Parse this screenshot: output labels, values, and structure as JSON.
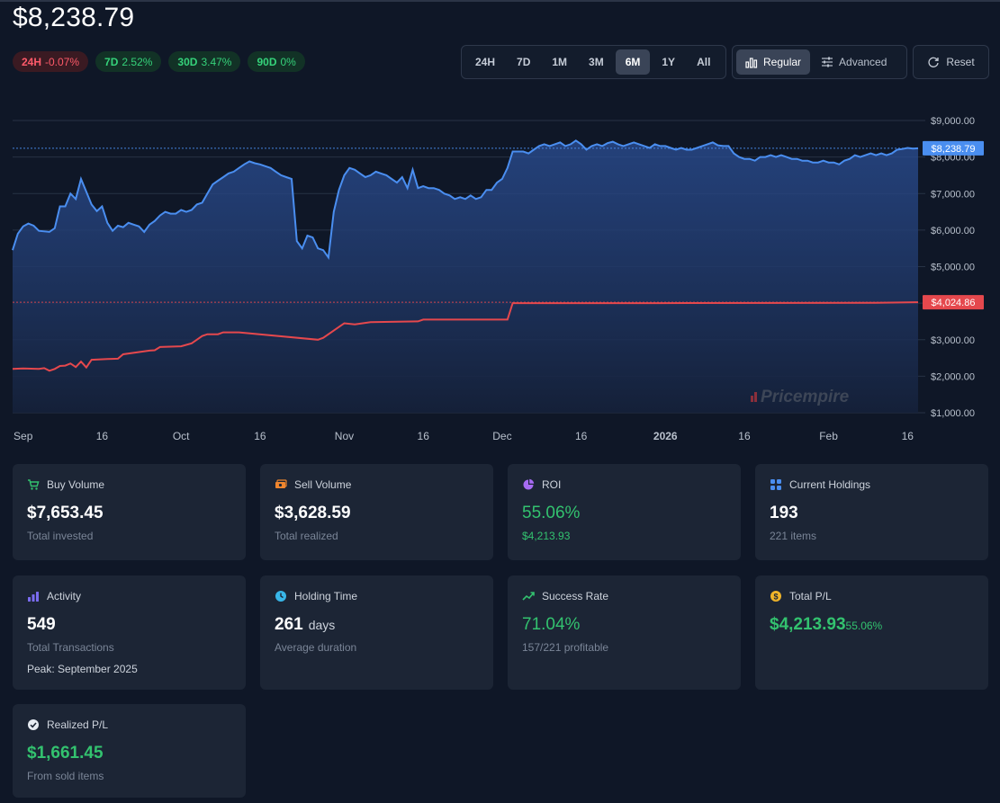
{
  "portfolio": {
    "current_value": "$8,238.79"
  },
  "changes": [
    {
      "period": "24H",
      "value": "-0.07%",
      "trend": "negative"
    },
    {
      "period": "7D",
      "value": "2.52%",
      "trend": "positive"
    },
    {
      "period": "30D",
      "value": "3.47%",
      "trend": "positive"
    },
    {
      "period": "90D",
      "value": "0%",
      "trend": "positive"
    }
  ],
  "ranges": {
    "options": [
      "24H",
      "7D",
      "1M",
      "3M",
      "6M",
      "1Y",
      "All"
    ],
    "selected": "6M"
  },
  "modes": {
    "regular_label": "Regular",
    "advanced_label": "Advanced",
    "selected": "Regular"
  },
  "reset_label": "Reset",
  "chart_data": {
    "type": "line",
    "y_ticks": [
      "$9,000.00",
      "$8,000.00",
      "$7,000.00",
      "$6,000.00",
      "$5,000.00",
      "$4,000.00",
      "$3,000.00",
      "$2,000.00",
      "$1,000.00"
    ],
    "x_ticks": [
      "Sep",
      "16",
      "Oct",
      "16",
      "Nov",
      "16",
      "Dec",
      "16",
      "2026",
      "16",
      "Feb",
      "16"
    ],
    "ylim": [
      1000,
      9000
    ],
    "grid": true,
    "watermark": "Pricempire",
    "series": [
      {
        "color": "#4a8ef0",
        "last_label": "$8,238.79",
        "points": [
          [
            "2025-08-30",
            5450
          ],
          [
            "2025-08-31",
            5900
          ],
          [
            "2025-09-01",
            6100
          ],
          [
            "2025-09-02",
            6180
          ],
          [
            "2025-09-03",
            6120
          ],
          [
            "2025-09-04",
            5980
          ],
          [
            "2025-09-06",
            5950
          ],
          [
            "2025-09-07",
            6050
          ],
          [
            "2025-09-08",
            6650
          ],
          [
            "2025-09-09",
            6650
          ],
          [
            "2025-09-10",
            7000
          ],
          [
            "2025-09-11",
            6850
          ],
          [
            "2025-09-12",
            7400
          ],
          [
            "2025-09-13",
            7050
          ],
          [
            "2025-09-14",
            6700
          ],
          [
            "2025-09-15",
            6520
          ],
          [
            "2025-09-16",
            6650
          ],
          [
            "2025-09-17",
            6200
          ],
          [
            "2025-09-18",
            5980
          ],
          [
            "2025-09-19",
            6120
          ],
          [
            "2025-09-20",
            6080
          ],
          [
            "2025-09-21",
            6200
          ],
          [
            "2025-09-22",
            6150
          ],
          [
            "2025-09-23",
            6100
          ],
          [
            "2025-09-24",
            5950
          ],
          [
            "2025-09-25",
            6150
          ],
          [
            "2025-09-26",
            6250
          ],
          [
            "2025-09-27",
            6400
          ],
          [
            "2025-09-28",
            6500
          ],
          [
            "2025-09-29",
            6450
          ],
          [
            "2025-09-30",
            6450
          ],
          [
            "2025-10-01",
            6550
          ],
          [
            "2025-10-02",
            6500
          ],
          [
            "2025-10-03",
            6550
          ],
          [
            "2025-10-04",
            6700
          ],
          [
            "2025-10-05",
            6750
          ],
          [
            "2025-10-06",
            7000
          ],
          [
            "2025-10-07",
            7250
          ],
          [
            "2025-10-08",
            7350
          ],
          [
            "2025-10-09",
            7450
          ],
          [
            "2025-10-10",
            7550
          ],
          [
            "2025-10-11",
            7600
          ],
          [
            "2025-10-12",
            7700
          ],
          [
            "2025-10-13",
            7800
          ],
          [
            "2025-10-14",
            7880
          ],
          [
            "2025-10-15",
            7830
          ],
          [
            "2025-10-16",
            7800
          ],
          [
            "2025-10-17",
            7750
          ],
          [
            "2025-10-18",
            7700
          ],
          [
            "2025-10-19",
            7600
          ],
          [
            "2025-10-20",
            7500
          ],
          [
            "2025-10-21",
            7450
          ],
          [
            "2025-10-22",
            7400
          ],
          [
            "2025-10-23",
            5700
          ],
          [
            "2025-10-24",
            5500
          ],
          [
            "2025-10-25",
            5850
          ],
          [
            "2025-10-26",
            5800
          ],
          [
            "2025-10-27",
            5500
          ],
          [
            "2025-10-28",
            5450
          ],
          [
            "2025-10-29",
            5250
          ],
          [
            "2025-10-30",
            6500
          ],
          [
            "2025-10-31",
            7100
          ],
          [
            "2025-11-01",
            7500
          ],
          [
            "2025-11-02",
            7700
          ],
          [
            "2025-11-03",
            7650
          ],
          [
            "2025-11-04",
            7550
          ],
          [
            "2025-11-05",
            7450
          ],
          [
            "2025-11-06",
            7500
          ],
          [
            "2025-11-07",
            7600
          ],
          [
            "2025-11-08",
            7550
          ],
          [
            "2025-11-09",
            7500
          ],
          [
            "2025-11-10",
            7400
          ],
          [
            "2025-11-11",
            7300
          ],
          [
            "2025-11-12",
            7450
          ],
          [
            "2025-11-13",
            7150
          ],
          [
            "2025-11-14",
            7650
          ],
          [
            "2025-11-15",
            7150
          ],
          [
            "2025-11-16",
            7200
          ],
          [
            "2025-11-17",
            7150
          ],
          [
            "2025-11-18",
            7150
          ],
          [
            "2025-11-19",
            7100
          ],
          [
            "2025-11-20",
            7000
          ],
          [
            "2025-11-21",
            6950
          ],
          [
            "2025-11-22",
            6850
          ],
          [
            "2025-11-23",
            6900
          ],
          [
            "2025-11-24",
            6850
          ],
          [
            "2025-11-25",
            6950
          ],
          [
            "2025-11-26",
            6850
          ],
          [
            "2025-11-27",
            6900
          ],
          [
            "2025-11-28",
            7100
          ],
          [
            "2025-11-29",
            7100
          ],
          [
            "2025-11-30",
            7300
          ],
          [
            "2025-12-01",
            7400
          ],
          [
            "2025-12-02",
            7700
          ],
          [
            "2025-12-03",
            8150
          ],
          [
            "2025-12-04",
            8150
          ],
          [
            "2025-12-05",
            8150
          ],
          [
            "2025-12-06",
            8100
          ],
          [
            "2025-12-07",
            8200
          ],
          [
            "2025-12-08",
            8300
          ],
          [
            "2025-12-09",
            8350
          ],
          [
            "2025-12-10",
            8300
          ],
          [
            "2025-12-11",
            8350
          ],
          [
            "2025-12-12",
            8400
          ],
          [
            "2025-12-13",
            8300
          ],
          [
            "2025-12-14",
            8350
          ],
          [
            "2025-12-15",
            8450
          ],
          [
            "2025-12-16",
            8350
          ],
          [
            "2025-12-17",
            8200
          ],
          [
            "2025-12-18",
            8300
          ],
          [
            "2025-12-19",
            8350
          ],
          [
            "2025-12-20",
            8300
          ],
          [
            "2025-12-21",
            8380
          ],
          [
            "2025-12-22",
            8420
          ],
          [
            "2025-12-23",
            8350
          ],
          [
            "2025-12-24",
            8300
          ],
          [
            "2025-12-25",
            8350
          ],
          [
            "2025-12-26",
            8400
          ],
          [
            "2025-12-27",
            8350
          ],
          [
            "2025-12-28",
            8300
          ],
          [
            "2025-12-29",
            8250
          ],
          [
            "2025-12-30",
            8350
          ],
          [
            "2025-12-31",
            8300
          ],
          [
            "2026-01-01",
            8300
          ],
          [
            "2026-01-02",
            8250
          ],
          [
            "2026-01-03",
            8200
          ],
          [
            "2026-01-04",
            8250
          ],
          [
            "2026-01-05",
            8200
          ],
          [
            "2026-01-06",
            8200
          ],
          [
            "2026-01-07",
            8250
          ],
          [
            "2026-01-08",
            8300
          ],
          [
            "2026-01-09",
            8350
          ],
          [
            "2026-01-10",
            8400
          ],
          [
            "2026-01-11",
            8320
          ],
          [
            "2026-01-12",
            8300
          ],
          [
            "2026-01-13",
            8300
          ],
          [
            "2026-01-14",
            8100
          ],
          [
            "2026-01-15",
            8000
          ],
          [
            "2026-01-16",
            7950
          ],
          [
            "2026-01-17",
            7950
          ],
          [
            "2026-01-18",
            7900
          ],
          [
            "2026-01-19",
            8000
          ],
          [
            "2026-01-20",
            8000
          ],
          [
            "2026-01-21",
            8050
          ],
          [
            "2026-01-22",
            8000
          ],
          [
            "2026-01-23",
            8050
          ],
          [
            "2026-01-24",
            8000
          ],
          [
            "2026-01-25",
            7950
          ],
          [
            "2026-01-26",
            7950
          ],
          [
            "2026-01-27",
            7900
          ],
          [
            "2026-01-28",
            7900
          ],
          [
            "2026-01-29",
            7850
          ],
          [
            "2026-01-30",
            7850
          ],
          [
            "2026-01-31",
            7900
          ],
          [
            "2026-02-01",
            7850
          ],
          [
            "2026-02-02",
            7850
          ],
          [
            "2026-02-03",
            7800
          ],
          [
            "2026-02-04",
            7900
          ],
          [
            "2026-02-05",
            7950
          ],
          [
            "2026-02-06",
            8050
          ],
          [
            "2026-02-07",
            8000
          ],
          [
            "2026-02-08",
            8050
          ],
          [
            "2026-02-09",
            8100
          ],
          [
            "2026-02-10",
            8050
          ],
          [
            "2026-02-11",
            8100
          ],
          [
            "2026-02-12",
            8050
          ],
          [
            "2026-02-13",
            8100
          ],
          [
            "2026-02-14",
            8200
          ],
          [
            "2026-02-15",
            8220
          ],
          [
            "2026-02-16",
            8250
          ],
          [
            "2026-02-17",
            8230
          ],
          [
            "2026-02-18",
            8239
          ]
        ]
      },
      {
        "color": "#e5484d",
        "last_label": "$4,024.86",
        "points": [
          [
            "2025-08-30",
            2200
          ],
          [
            "2025-09-01",
            2210
          ],
          [
            "2025-09-04",
            2200
          ],
          [
            "2025-09-05",
            2220
          ],
          [
            "2025-09-06",
            2150
          ],
          [
            "2025-09-07",
            2200
          ],
          [
            "2025-09-08",
            2280
          ],
          [
            "2025-09-09",
            2290
          ],
          [
            "2025-09-10",
            2350
          ],
          [
            "2025-09-11",
            2250
          ],
          [
            "2025-09-12",
            2400
          ],
          [
            "2025-09-13",
            2240
          ],
          [
            "2025-09-14",
            2450
          ],
          [
            "2025-09-17",
            2470
          ],
          [
            "2025-09-19",
            2480
          ],
          [
            "2025-09-20",
            2600
          ],
          [
            "2025-09-25",
            2700
          ],
          [
            "2025-09-26",
            2710
          ],
          [
            "2025-09-27",
            2800
          ],
          [
            "2025-10-01",
            2820
          ],
          [
            "2025-10-03",
            2900
          ],
          [
            "2025-10-04",
            3000
          ],
          [
            "2025-10-05",
            3100
          ],
          [
            "2025-10-06",
            3150
          ],
          [
            "2025-10-08",
            3150
          ],
          [
            "2025-10-09",
            3200
          ],
          [
            "2025-10-12",
            3200
          ],
          [
            "2025-10-27",
            3000
          ],
          [
            "2025-10-28",
            3050
          ],
          [
            "2025-11-01",
            3450
          ],
          [
            "2025-11-03",
            3420
          ],
          [
            "2025-11-06",
            3480
          ],
          [
            "2025-11-15",
            3500
          ],
          [
            "2025-11-16",
            3550
          ],
          [
            "2025-12-02",
            3550
          ],
          [
            "2025-12-03",
            4000
          ],
          [
            "2025-12-31",
            4000
          ],
          [
            "2026-02-10",
            4010
          ],
          [
            "2026-02-18",
            4025
          ]
        ]
      }
    ]
  },
  "cards": {
    "buy_volume": {
      "title": "Buy Volume",
      "value": "$7,653.45",
      "sub": "Total invested",
      "icon": "cart-icon"
    },
    "sell_volume": {
      "title": "Sell Volume",
      "value": "$3,628.59",
      "sub": "Total realized",
      "icon": "cash-icon"
    },
    "roi": {
      "title": "ROI",
      "value": "55.06%",
      "sub": "$4,213.93",
      "icon": "pie-icon"
    },
    "holdings": {
      "title": "Current Holdings",
      "value": "193",
      "sub": "221 items",
      "icon": "grid-icon"
    },
    "activity": {
      "title": "Activity",
      "value": "549",
      "sub": "Total Transactions",
      "extra": "Peak: September 2025",
      "icon": "bars-icon"
    },
    "holding_time": {
      "title": "Holding Time",
      "value": "261",
      "unit": "days",
      "sub": "Average duration",
      "icon": "clock-icon"
    },
    "success_rate": {
      "title": "Success Rate",
      "value": "71.04%",
      "sub": "157/221 profitable",
      "icon": "trend-up-icon"
    },
    "total_pl": {
      "title": "Total P/L",
      "value": "$4,213.93",
      "pct": "55.06%",
      "icon": "dollar-coin-icon"
    },
    "realized_pl": {
      "title": "Realized P/L",
      "value": "$1,661.45",
      "sub": "From sold items",
      "icon": "check-circle-icon"
    }
  },
  "colors": {
    "accent": "#4a8ef0",
    "invested": "#e5484d",
    "positive": "#33c26f",
    "negative": "#ff5a6a"
  }
}
